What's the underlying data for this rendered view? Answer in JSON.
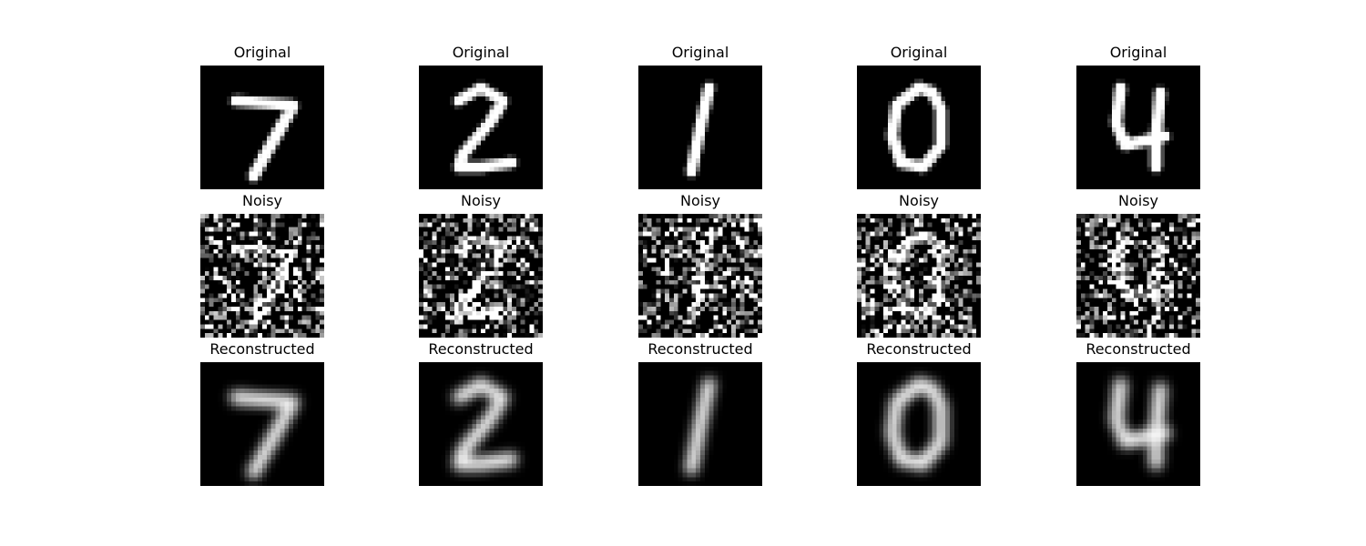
{
  "rows": [
    {
      "title": "Original",
      "kind": "original"
    },
    {
      "title": "Noisy",
      "kind": "noisy"
    },
    {
      "title": "Reconstructed",
      "kind": "reconstructed"
    }
  ],
  "columns": [
    {
      "digit": "7"
    },
    {
      "digit": "2"
    },
    {
      "digit": "1"
    },
    {
      "digit": "0"
    },
    {
      "digit": "4"
    }
  ],
  "colors": {
    "background": "#ffffff",
    "image_background": "#000000",
    "stroke": "#ffffff",
    "title_text": "#000000"
  }
}
